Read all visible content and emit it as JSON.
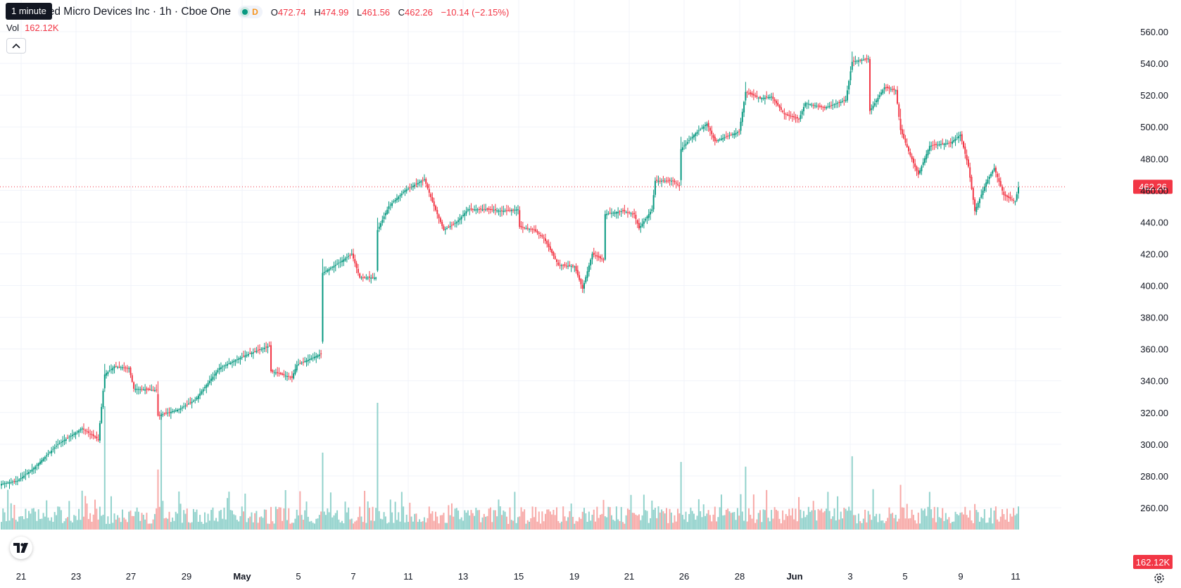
{
  "legend": {
    "title": "ced Micro Devices Inc · 1h · Cboe One",
    "interval_badge": "D",
    "open_label": "O",
    "open": "472.74",
    "high_label": "H",
    "high": "474.99",
    "low_label": "L",
    "low": "461.56",
    "close_label": "C",
    "close": "462.26",
    "change": "−10.14 (−2.15%)"
  },
  "tooltip": "1 minute",
  "volume": {
    "label": "Vol",
    "value": "162.12K"
  },
  "colors": {
    "up": "#089981",
    "down": "#f23645",
    "up_vol": "#92d2cc",
    "down_vol": "#f7a9a7",
    "grid": "#f0f3fa"
  },
  "icons": {
    "collapse": "chevron-up-icon",
    "logo": "tradingview-logo-icon",
    "settings": "gear-icon"
  },
  "chart_data": {
    "type": "candlestick",
    "ylim": [
      250,
      570
    ],
    "y_ticks": [
      260,
      280,
      300,
      320,
      340,
      360,
      380,
      400,
      420,
      440,
      460,
      480,
      500,
      520,
      540,
      560
    ],
    "x_tick_labels": [
      "21",
      "23",
      "27",
      "29",
      "May",
      "5",
      "7",
      "11",
      "13",
      "15",
      "19",
      "21",
      "26",
      "28",
      "Jun",
      "3",
      "5",
      "9",
      "11"
    ],
    "last_price": 462.26,
    "last_price_label": "462.26",
    "last_volume_label": "162.12K",
    "grid": true,
    "anchors": [
      [
        0,
        275
      ],
      [
        10,
        277
      ],
      [
        20,
        285
      ],
      [
        35,
        300
      ],
      [
        50,
        310
      ],
      [
        60,
        303
      ],
      [
        64,
        344
      ],
      [
        70,
        349
      ],
      [
        79,
        348
      ],
      [
        82,
        335
      ],
      [
        96,
        334
      ],
      [
        97,
        318
      ],
      [
        110,
        322
      ],
      [
        120,
        328
      ],
      [
        135,
        348
      ],
      [
        151,
        356
      ],
      [
        166,
        362
      ],
      [
        167,
        346
      ],
      [
        180,
        342
      ],
      [
        183,
        350
      ],
      [
        198,
        357
      ],
      [
        199,
        408
      ],
      [
        210,
        415
      ],
      [
        217,
        420
      ],
      [
        222,
        405
      ],
      [
        232,
        405
      ],
      [
        233,
        435
      ],
      [
        240,
        450
      ],
      [
        250,
        460
      ],
      [
        262,
        467
      ],
      [
        268,
        450
      ],
      [
        274,
        435
      ],
      [
        282,
        440
      ],
      [
        289,
        448
      ],
      [
        300,
        448
      ],
      [
        310,
        447
      ],
      [
        320,
        448
      ],
      [
        321,
        437
      ],
      [
        330,
        435
      ],
      [
        336,
        430
      ],
      [
        345,
        413
      ],
      [
        355,
        412
      ],
      [
        360,
        398
      ],
      [
        366,
        420
      ],
      [
        373,
        416
      ],
      [
        374,
        445
      ],
      [
        385,
        447
      ],
      [
        392,
        445
      ],
      [
        395,
        436
      ],
      [
        403,
        448
      ],
      [
        405,
        466
      ],
      [
        416,
        466
      ],
      [
        420,
        463
      ],
      [
        421,
        486
      ],
      [
        430,
        496
      ],
      [
        437,
        502
      ],
      [
        442,
        491
      ],
      [
        452,
        495
      ],
      [
        457,
        497
      ],
      [
        461,
        522
      ],
      [
        470,
        518
      ],
      [
        477,
        519
      ],
      [
        485,
        508
      ],
      [
        494,
        505
      ],
      [
        498,
        515
      ],
      [
        510,
        512
      ],
      [
        523,
        517
      ],
      [
        527,
        541
      ],
      [
        537,
        543
      ],
      [
        538,
        510
      ],
      [
        547,
        525
      ],
      [
        554,
        523
      ],
      [
        557,
        498
      ],
      [
        563,
        482
      ],
      [
        568,
        470
      ],
      [
        575,
        488
      ],
      [
        588,
        490
      ],
      [
        594,
        495
      ],
      [
        599,
        475
      ],
      [
        603,
        447
      ],
      [
        610,
        465
      ],
      [
        615,
        474
      ],
      [
        621,
        457
      ],
      [
        628,
        453
      ],
      [
        630,
        462
      ]
    ],
    "spikes": [
      64,
      97,
      199,
      233,
      421,
      461,
      527,
      557
    ]
  }
}
